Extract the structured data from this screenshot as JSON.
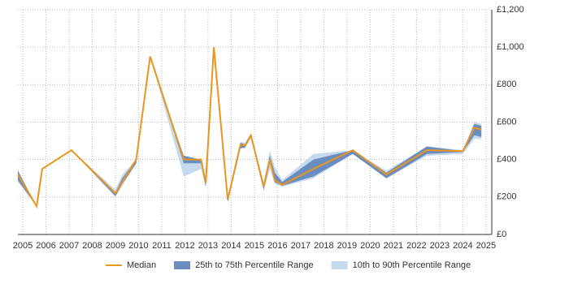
{
  "chart_data": {
    "type": "line-band",
    "x": [
      2004.79,
      2005.6,
      2005.84,
      2007.1,
      2009.0,
      2009.3,
      2009.9,
      2010.5,
      2011.95,
      2012.7,
      2012.9,
      2013.25,
      2013.85,
      2014.4,
      2014.6,
      2014.85,
      2015.4,
      2015.67,
      2015.88,
      2016.2,
      2017.55,
      2019.25,
      2020.7,
      2022.45,
      2024.0,
      2024.5,
      2024.8
    ],
    "series": [
      {
        "name": "Median",
        "color": "#e8961e",
        "values": [
          320,
          150,
          350,
          450,
          220,
          280,
          400,
          950,
          400,
          400,
          275,
          1000,
          185,
          480,
          475,
          530,
          255,
          400,
          290,
          265,
          350,
          450,
          320,
          450,
          445,
          570,
          560
        ]
      },
      {
        "name": "25th to 75th Percentile Range",
        "color": "#6a8cbf",
        "lower": [
          290,
          150,
          350,
          450,
          205,
          270,
          380,
          950,
          380,
          380,
          255,
          1000,
          175,
          460,
          465,
          520,
          240,
          380,
          280,
          260,
          310,
          430,
          300,
          430,
          440,
          530,
          520
        ],
        "upper": [
          340,
          150,
          350,
          450,
          225,
          300,
          400,
          950,
          420,
          400,
          275,
          1000,
          200,
          490,
          480,
          535,
          270,
          420,
          330,
          280,
          400,
          450,
          330,
          470,
          445,
          590,
          580
        ]
      },
      {
        "name": "10th to 90th Percentile Range",
        "color": "#c6d9ef",
        "lower": [
          280,
          150,
          350,
          450,
          200,
          260,
          380,
          950,
          310,
          350,
          250,
          1000,
          170,
          460,
          460,
          515,
          230,
          350,
          270,
          255,
          300,
          430,
          300,
          420,
          430,
          510,
          510
        ],
        "upper": [
          345,
          150,
          350,
          450,
          240,
          320,
          400,
          950,
          420,
          400,
          280,
          1000,
          210,
          495,
          490,
          540,
          280,
          450,
          360,
          290,
          430,
          450,
          340,
          470,
          450,
          600,
          590
        ]
      }
    ],
    "xlim": [
      2004.79,
      2025.25
    ],
    "xticks": [
      2005,
      2006,
      2007,
      2008,
      2009,
      2010,
      2011,
      2012,
      2013,
      2014,
      2015,
      2016,
      2017,
      2018,
      2019,
      2020,
      2021,
      2022,
      2023,
      2024,
      2025
    ],
    "ylim": [
      0,
      1200
    ],
    "yticks": [
      {
        "value": 0,
        "label": "£0"
      },
      {
        "value": 200,
        "label": "£200"
      },
      {
        "value": 400,
        "label": "£400"
      },
      {
        "value": 600,
        "label": "£600"
      },
      {
        "value": 800,
        "label": "£800"
      },
      {
        "value": 1000,
        "label": "£1,000"
      },
      {
        "value": 1200,
        "label": "£1,200"
      }
    ],
    "grid": true,
    "legend": "bottom"
  }
}
